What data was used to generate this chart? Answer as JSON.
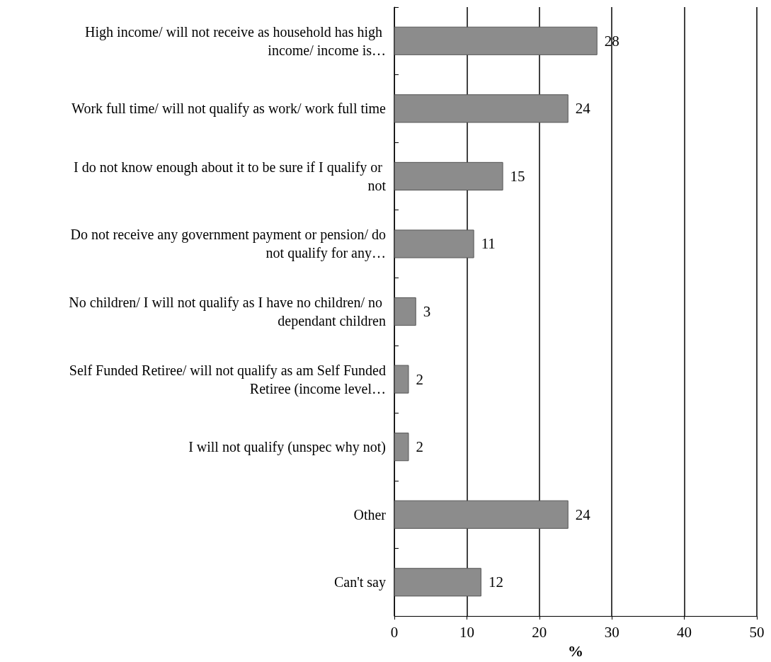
{
  "chart_data": {
    "type": "bar",
    "orientation": "horizontal",
    "xlabel": "%",
    "categories": [
      "High income/ will not receive as household has high income/ income is…",
      "Work full time/ will not qualify as work/ work full time",
      "I do not know enough about it to be sure if I qualify or not",
      "Do not receive any government payment or pension/ do not qualify for any…",
      "No children/ I will not qualify as I have no children/ no dependant children",
      "Self Funded Retiree/ will not qualify as am Self Funded Retiree (income level…",
      "I will not qualify (unspec why not)",
      "Other",
      "Can't say"
    ],
    "values": [
      28,
      24,
      15,
      11,
      3,
      2,
      2,
      24,
      12
    ],
    "color": "#8c8c8c",
    "xlim": [
      0,
      50
    ],
    "xticks": [
      0,
      10,
      20,
      30,
      40,
      50
    ],
    "grid": "x",
    "data_labels": true
  }
}
